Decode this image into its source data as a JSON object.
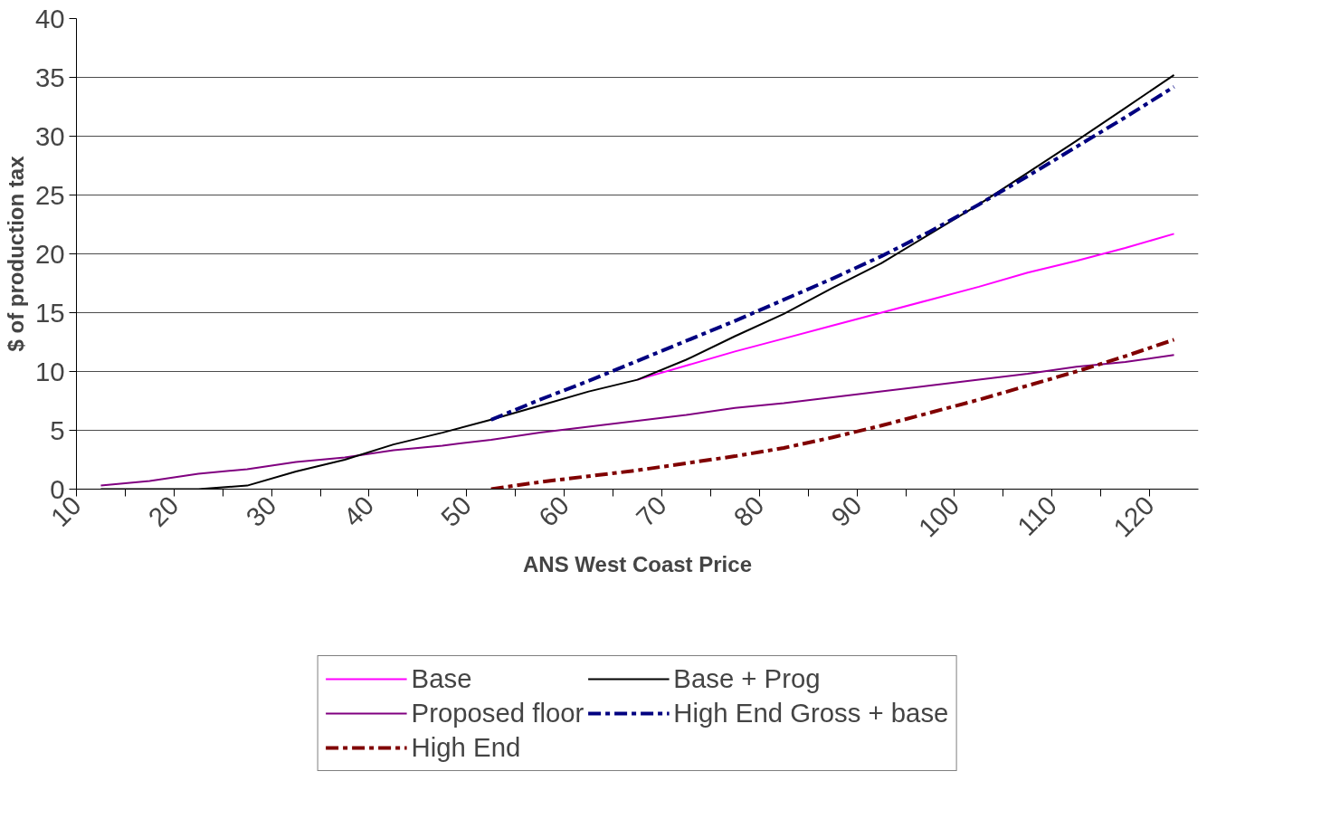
{
  "chart_data": {
    "type": "line",
    "xlabel": "ANS West Coast Price",
    "ylabel": "$ of production tax",
    "x": [
      12.5,
      17.5,
      22.5,
      27.5,
      32.5,
      37.5,
      42.5,
      47.5,
      52.5,
      57.5,
      62.5,
      67.5,
      72.5,
      77.5,
      82.5,
      87.5,
      92.5,
      97.5,
      102.5,
      107.5,
      112.5,
      117.5,
      122.5
    ],
    "series": [
      {
        "name": "Base",
        "color": "#ff00ff",
        "line_style": "solid",
        "values": [
          null,
          null,
          null,
          null,
          null,
          null,
          null,
          null,
          null,
          null,
          null,
          9.3,
          10.5,
          11.7,
          12.8,
          13.9,
          15.0,
          16.1,
          17.2,
          18.4,
          19.4,
          20.5,
          21.7
        ]
      },
      {
        "name": "Proposed floor",
        "color": "#800080",
        "line_style": "solid",
        "values": [
          0.3,
          0.7,
          1.3,
          1.7,
          2.3,
          2.7,
          3.3,
          3.7,
          4.2,
          4.8,
          5.3,
          5.8,
          6.3,
          6.9,
          7.3,
          7.8,
          8.3,
          8.8,
          9.3,
          9.8,
          10.4,
          10.8,
          11.4
        ]
      },
      {
        "name": "High End",
        "color": "#800000",
        "line_style": "dashed",
        "values": [
          null,
          null,
          null,
          null,
          null,
          null,
          null,
          null,
          0,
          0.6,
          1.1,
          1.6,
          2.2,
          2.8,
          3.5,
          4.4,
          5.4,
          6.5,
          7.6,
          8.8,
          10.0,
          11.3,
          12.7
        ]
      },
      {
        "name": "Base + Prog",
        "color": "#000000",
        "line_style": "solid",
        "values": [
          0,
          0,
          0,
          0.3,
          1.5,
          2.5,
          3.8,
          4.8,
          5.9,
          7.1,
          8.3,
          9.3,
          11.0,
          13.0,
          14.9,
          17.1,
          19.2,
          21.7,
          24.2,
          26.9,
          29.6,
          32.4,
          35.2
        ]
      },
      {
        "name": "High End Gross + base",
        "color": "#000080",
        "line_style": "dashed",
        "values": [
          null,
          null,
          null,
          null,
          null,
          null,
          null,
          null,
          5.9,
          7.6,
          9.2,
          10.9,
          12.6,
          14.3,
          16.1,
          17.9,
          19.8,
          21.9,
          24.2,
          26.6,
          29.1,
          31.6,
          34.2
        ]
      }
    ],
    "xlim": [
      10,
      125
    ],
    "ylim": [
      0,
      40
    ],
    "xticks": [
      10,
      {
        "value": 15,
        "label": null
      },
      20,
      {
        "value": 25,
        "label": null
      },
      30,
      {
        "value": 35,
        "label": null
      },
      40,
      {
        "value": 45,
        "label": null
      },
      50,
      {
        "value": 55,
        "label": null
      },
      60,
      {
        "value": 65,
        "label": null
      },
      70,
      {
        "value": 75,
        "label": null
      },
      80,
      {
        "value": 85,
        "label": null
      },
      90,
      {
        "value": 95,
        "label": null
      },
      100,
      {
        "value": 105,
        "label": null
      },
      110,
      {
        "value": 115,
        "label": null
      },
      120
    ],
    "yticks": [
      0,
      5,
      10,
      15,
      20,
      25,
      30,
      35,
      40
    ],
    "grid": "y",
    "legend": "bottom",
    "marker": "none"
  }
}
